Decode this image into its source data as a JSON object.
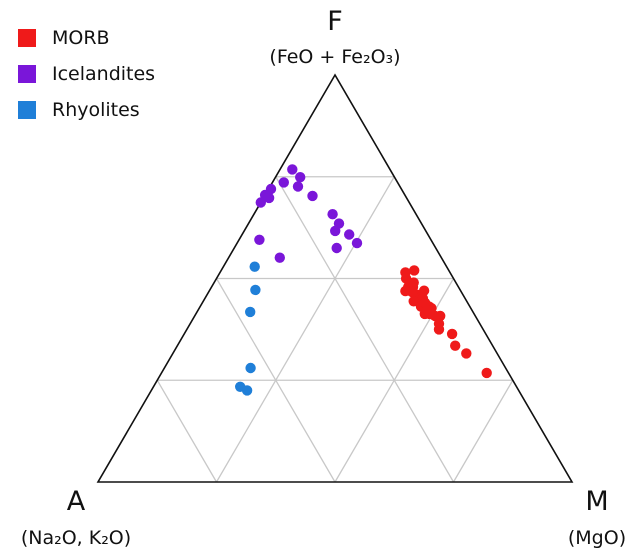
{
  "chart_data": {
    "type": "scatter",
    "subtype": "ternary-AFM",
    "grid": true,
    "legend_position": "top-left",
    "vertices": {
      "F": {
        "letter": "F",
        "composition": "(FeO + Fe₂O₃)"
      },
      "A": {
        "letter": "A",
        "composition": "(Na₂O, K₂O)"
      },
      "M": {
        "letter": "M",
        "composition": "(MgO)"
      }
    },
    "series": [
      {
        "name": "MORB",
        "color": "#ef1a1a",
        "points": [
          {
            "A": 0.073,
            "F": 0.52,
            "M": 0.407
          },
          {
            "A": 0.094,
            "F": 0.515,
            "M": 0.391
          },
          {
            "A": 0.089,
            "F": 0.49,
            "M": 0.421
          },
          {
            "A": 0.106,
            "F": 0.479,
            "M": 0.415
          },
          {
            "A": 0.102,
            "F": 0.479,
            "M": 0.419
          },
          {
            "A": 0.096,
            "F": 0.479,
            "M": 0.425
          },
          {
            "A": 0.077,
            "F": 0.47,
            "M": 0.453
          },
          {
            "A": 0.096,
            "F": 0.46,
            "M": 0.444
          },
          {
            "A": 0.104,
            "F": 0.469,
            "M": 0.427
          },
          {
            "A": 0.104,
            "F": 0.467,
            "M": 0.429
          },
          {
            "A": 0.117,
            "F": 0.469,
            "M": 0.414
          },
          {
            "A": 0.103,
            "F": 0.451,
            "M": 0.446
          },
          {
            "A": 0.089,
            "F": 0.451,
            "M": 0.46
          },
          {
            "A": 0.112,
            "F": 0.444,
            "M": 0.444
          },
          {
            "A": 0.086,
            "F": 0.431,
            "M": 0.483
          },
          {
            "A": 0.083,
            "F": 0.427,
            "M": 0.49
          },
          {
            "A": 0.093,
            "F": 0.431,
            "M": 0.476
          },
          {
            "A": 0.103,
            "F": 0.431,
            "M": 0.466
          },
          {
            "A": 0.104,
            "F": 0.413,
            "M": 0.483
          },
          {
            "A": 0.074,
            "F": 0.408,
            "M": 0.518
          },
          {
            "A": 0.085,
            "F": 0.408,
            "M": 0.507
          },
          {
            "A": 0.094,
            "F": 0.413,
            "M": 0.493
          },
          {
            "A": 0.086,
            "F": 0.389,
            "M": 0.525
          },
          {
            "A": 0.093,
            "F": 0.375,
            "M": 0.532
          },
          {
            "A": 0.071,
            "F": 0.364,
            "M": 0.565
          },
          {
            "A": 0.079,
            "F": 0.335,
            "M": 0.586
          },
          {
            "A": 0.065,
            "F": 0.316,
            "M": 0.619
          },
          {
            "A": 0.046,
            "F": 0.268,
            "M": 0.686
          },
          {
            "A": 0.094,
            "F": 0.427,
            "M": 0.479
          },
          {
            "A": 0.09,
            "F": 0.44,
            "M": 0.47
          },
          {
            "A": 0.1,
            "F": 0.5,
            "M": 0.4
          }
        ]
      },
      {
        "name": "Icelandites",
        "color": "#7a16d9",
        "points": [
          {
            "A": 0.206,
            "F": 0.768,
            "M": 0.026
          },
          {
            "A": 0.199,
            "F": 0.749,
            "M": 0.052
          },
          {
            "A": 0.215,
            "F": 0.726,
            "M": 0.059
          },
          {
            "A": 0.24,
            "F": 0.736,
            "M": 0.024
          },
          {
            "A": 0.275,
            "F": 0.72,
            "M": 0.005
          },
          {
            "A": 0.29,
            "F": 0.698,
            "M": 0.012
          },
          {
            "A": 0.299,
            "F": 0.715,
            "M": 0.0
          },
          {
            "A": 0.326,
            "F": 0.715,
            "M": 0.0
          },
          {
            "A": 0.196,
            "F": 0.703,
            "M": 0.101
          },
          {
            "A": 0.174,
            "F": 0.635,
            "M": 0.191
          },
          {
            "A": 0.166,
            "F": 0.608,
            "M": 0.226
          },
          {
            "A": 0.191,
            "F": 0.617,
            "M": 0.192
          },
          {
            "A": 0.176,
            "F": 0.658,
            "M": 0.166
          },
          {
            "A": 0.16,
            "F": 0.587,
            "M": 0.253
          },
          {
            "A": 0.209,
            "F": 0.575,
            "M": 0.216
          },
          {
            "A": 0.362,
            "F": 0.595,
            "M": 0.043
          },
          {
            "A": 0.341,
            "F": 0.551,
            "M": 0.108
          }
        ]
      },
      {
        "name": "Rhyolites",
        "color": "#1f7fd8",
        "points": [
          {
            "A": 0.405,
            "F": 0.529,
            "M": 0.066
          },
          {
            "A": 0.432,
            "F": 0.472,
            "M": 0.096
          },
          {
            "A": 0.47,
            "F": 0.418,
            "M": 0.112
          },
          {
            "A": 0.538,
            "F": 0.28,
            "M": 0.182
          },
          {
            "A": 0.583,
            "F": 0.234,
            "M": 0.183
          },
          {
            "A": 0.573,
            "F": 0.225,
            "M": 0.202
          }
        ]
      }
    ]
  }
}
